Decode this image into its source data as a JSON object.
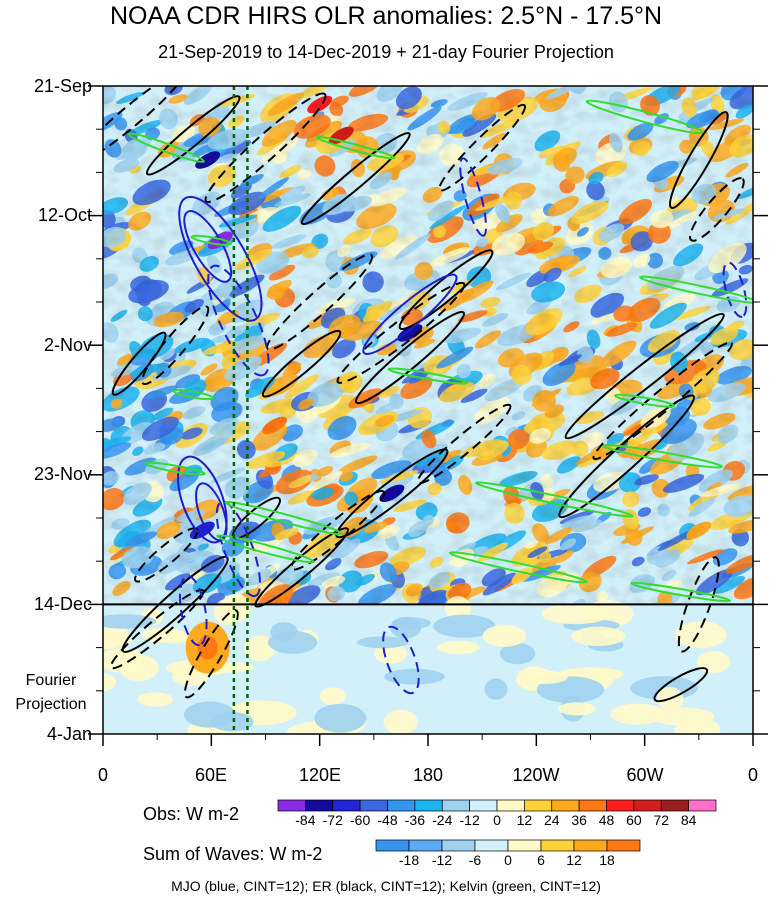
{
  "title": "NOAA CDR HIRS OLR anomalies: 2.5°N - 17.5°N",
  "subtitle": "21-Sep-2019 to 14-Dec-2019 + 21-day Fourier Projection",
  "projection_label_line1": "Fourier",
  "projection_label_line2": "Projection",
  "footer": "MJO (blue, CINT=12); ER (black, CINT=12); Kelvin (green, CINT=12)",
  "chart_data": {
    "type": "heatmap",
    "title": "NOAA CDR HIRS OLR anomalies: 2.5°N - 17.5°N",
    "subtitle": "21-Sep-2019 to 14-Dec-2019 + 21-day Fourier Projection",
    "x_ticks": [
      "0",
      "60E",
      "120E",
      "180",
      "120W",
      "60W",
      "0"
    ],
    "x_tick_longitudes": [
      0,
      60,
      120,
      180,
      240,
      300,
      360
    ],
    "y_ticks": [
      "21-Sep",
      "12-Oct",
      "2-Nov",
      "23-Nov",
      "14-Dec",
      "4-Jan"
    ],
    "y_tick_days": [
      0,
      21,
      42,
      63,
      84,
      105
    ],
    "observation_end": "14-Dec",
    "reference_longitudes": [
      72.5,
      80
    ],
    "obs_colorbar": {
      "label": "Obs: W m-2",
      "levels": [
        "-84",
        "-72",
        "-60",
        "-48",
        "-36",
        "-24",
        "-12",
        "0",
        "12",
        "24",
        "36",
        "48",
        "60",
        "72",
        "84"
      ],
      "colors": [
        "#8a2be2",
        "#140a9e",
        "#2323d8",
        "#3a68e0",
        "#3795f0",
        "#1eb4f0",
        "#a0d2f0",
        "#d2f0fa",
        "#fffac8",
        "#ffd23c",
        "#ffaa1e",
        "#ff7814",
        "#ff1e1e",
        "#d21e1e",
        "#9b1e1e",
        "#ff6ec8"
      ]
    },
    "waves_colorbar": {
      "label": "Sum of Waves: W m-2",
      "levels": [
        "-18",
        "-12",
        "-6",
        "0",
        "6",
        "12",
        "18"
      ],
      "colors": [
        "#3795f0",
        "#5aaaf5",
        "#a0d2f0",
        "#d2f0fa",
        "#fffac8",
        "#ffd23c",
        "#ffaa1e",
        "#ff7814"
      ]
    },
    "contours": [
      {
        "name": "MJO",
        "color": "#1e1ecd",
        "cint": 12
      },
      {
        "name": "ER",
        "color": "#000000",
        "cint": 12
      },
      {
        "name": "Kelvin",
        "color": "#32dc32",
        "cint": 12
      }
    ]
  }
}
